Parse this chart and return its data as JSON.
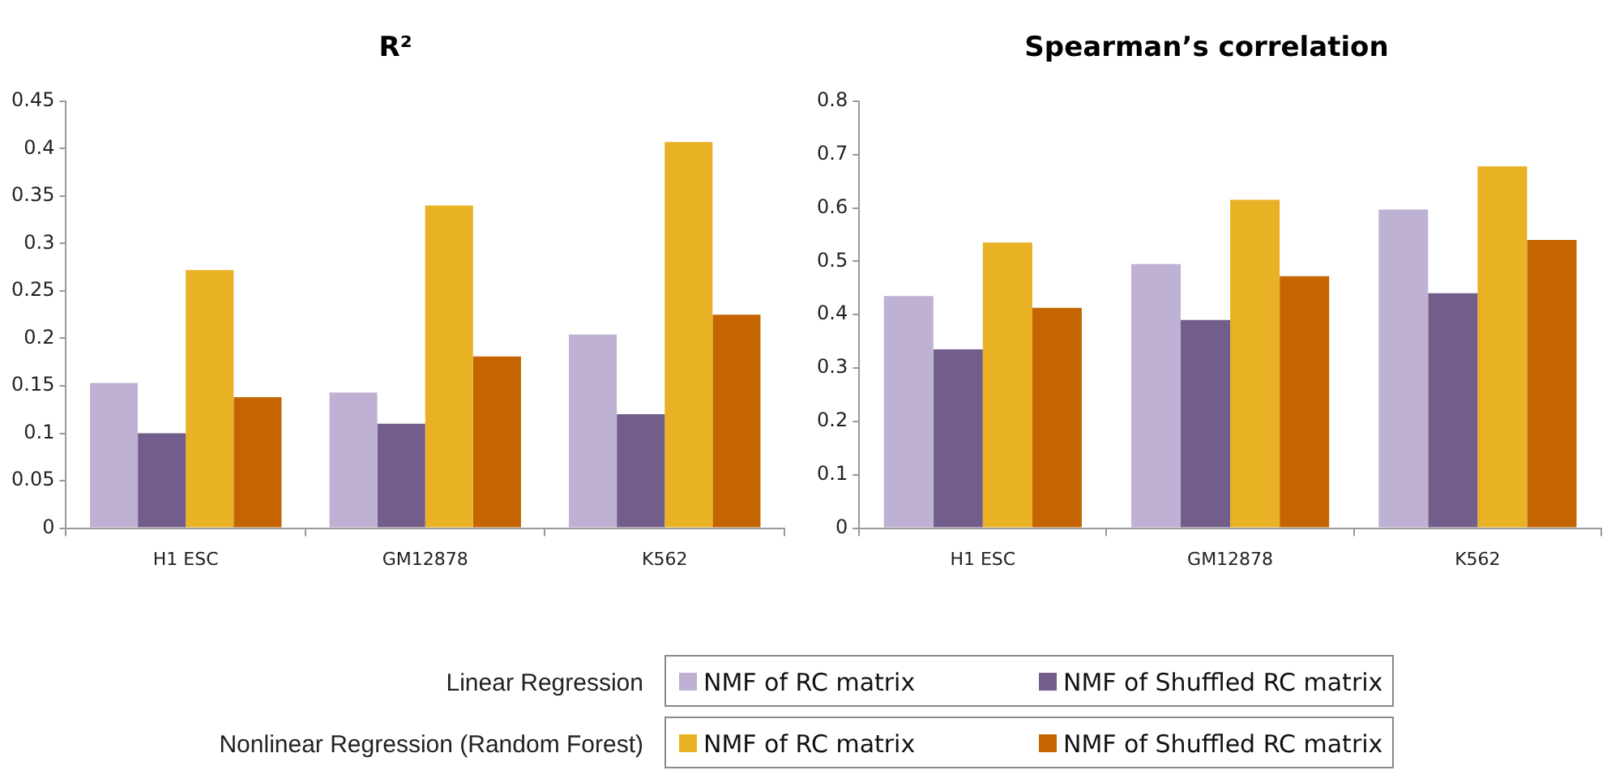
{
  "chart_data": [
    {
      "type": "bar",
      "title": "R²",
      "categories": [
        "H1 ESC",
        "GM12878",
        "K562"
      ],
      "series": [
        {
          "name": "NMF of RC matrix",
          "color": "#bfb1d3",
          "values": [
            0.153,
            0.143,
            0.204
          ]
        },
        {
          "name": "NMF of Shuffled RC matrix",
          "color": "#735e8b",
          "values": [
            0.1,
            0.11,
            0.12
          ]
        },
        {
          "name": "NMF of RC matrix",
          "color": "#e9b124",
          "values": [
            0.272,
            0.34,
            0.407
          ]
        },
        {
          "name": "NMF of Shuffled RC matrix",
          "color": "#c46502",
          "values": [
            0.138,
            0.181,
            0.225
          ]
        }
      ],
      "ylim": [
        0,
        0.45
      ],
      "yticks": [
        0,
        0.05,
        0.1,
        0.15,
        0.2,
        0.25,
        0.3,
        0.35,
        0.4,
        0.45
      ],
      "grid": false,
      "legend": "bottom",
      "annotations": [
        "Linear Regression",
        "Nonlinear Regression (Random Forest)"
      ]
    },
    {
      "type": "bar",
      "title": "Spearman’s correlation",
      "categories": [
        "H1 ESC",
        "GM12878",
        "K562"
      ],
      "series": [
        {
          "color": "#bfb1d3",
          "values": [
            0.435,
            0.495,
            0.597
          ]
        },
        {
          "color": "#735e8b",
          "values": [
            0.335,
            0.39,
            0.44
          ]
        },
        {
          "color": "#e9b124",
          "values": [
            0.535,
            0.615,
            0.678
          ]
        },
        {
          "color": "#c46502",
          "values": [
            0.413,
            0.472,
            0.54
          ]
        }
      ],
      "ylim": [
        0,
        0.8
      ],
      "yticks": [
        0,
        0.1,
        0.2,
        0.3,
        0.4,
        0.5,
        0.6,
        0.7,
        0.8
      ],
      "grid": false
    }
  ]
}
